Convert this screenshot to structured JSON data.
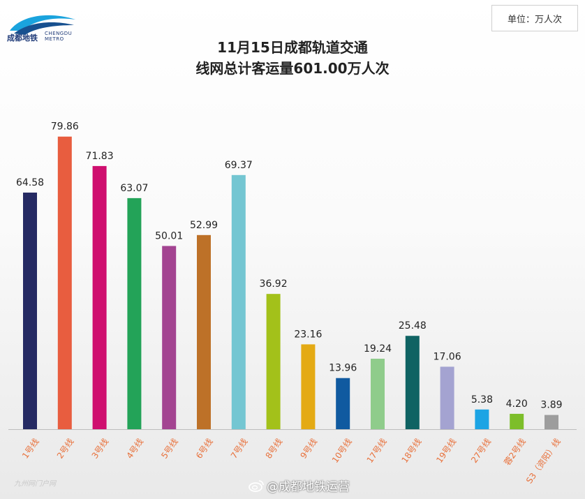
{
  "brand": {
    "logo_cn": "成都地铁",
    "logo_en_1": "CHENGDU",
    "logo_en_2": "METRO"
  },
  "unit_label": "单位：万人次",
  "watermark": {
    "text": "@成都地铁运营",
    "icon": "weibo-icon",
    "left_text": "九州网门户网"
  },
  "colors": {
    "baseline": "#bdbdbd",
    "label": "#222222",
    "axis_text": "#e8703a"
  },
  "chart_data": {
    "type": "bar",
    "title": "11月15日成都轨道交通",
    "subtitle": "线网总计客运量601.00万人次",
    "xlabel": "",
    "ylabel": "",
    "ylim": [
      0,
      85
    ],
    "grid": false,
    "legend": "none",
    "categories": [
      "1号线",
      "2号线",
      "3号线",
      "4号线",
      "5号线",
      "6号线",
      "7号线",
      "8号线",
      "9号线",
      "10号线",
      "17号线",
      "18号线",
      "19号线",
      "27号线",
      "蓉2号线",
      "S3（资阳）线"
    ],
    "values": [
      64.58,
      79.86,
      71.83,
      63.07,
      50.01,
      52.99,
      69.37,
      36.92,
      23.16,
      13.96,
      19.24,
      25.48,
      17.06,
      5.38,
      4.2,
      3.89
    ],
    "value_labels": [
      "64.58",
      "79.86",
      "71.83",
      "63.07",
      "50.01",
      "52.99",
      "69.37",
      "36.92",
      "23.16",
      "13.96",
      "19.24",
      "25.48",
      "17.06",
      "5.38",
      "4.20",
      "3.89"
    ],
    "bar_colors": [
      "#252a63",
      "#e85d3f",
      "#cf0f6f",
      "#23a358",
      "#a34491",
      "#bd7128",
      "#74c6d2",
      "#a3c11a",
      "#e4aa14",
      "#105aa0",
      "#8fcc8b",
      "#0f6363",
      "#a4a3d1",
      "#1ca4e4",
      "#7dbe2a",
      "#9d9d9d"
    ]
  }
}
